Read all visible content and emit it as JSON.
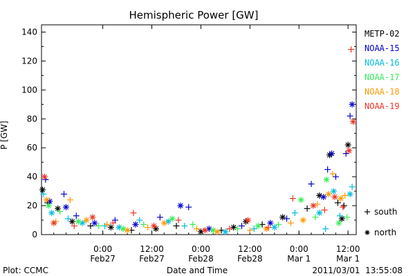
{
  "chart_data": {
    "type": "scatter",
    "title": "Hemispheric Power [GW]",
    "xlabel": "Date and Time",
    "ylabel": "P [GW]",
    "ylim": [
      0,
      145
    ],
    "yticks": [
      0,
      20,
      40,
      60,
      80,
      100,
      120,
      140
    ],
    "xlim": [
      "2011-02-26 09:00",
      "2011-03-01 14:00"
    ],
    "xticks": [
      {
        "time": "2011-02-27 00:00",
        "line1": "0:00",
        "line2": "Feb27"
      },
      {
        "time": "2011-02-27 12:00",
        "line1": "12:00",
        "line2": "Feb27"
      },
      {
        "time": "2011-02-28 00:00",
        "line1": "0:00",
        "line2": "Feb28"
      },
      {
        "time": "2011-02-28 12:00",
        "line1": "12:00",
        "line2": "Feb28"
      },
      {
        "time": "2011-03-01 00:00",
        "line1": "0:00",
        "line2": "Mar 1"
      },
      {
        "time": "2011-03-01 12:00",
        "line1": "12:00",
        "line2": "Mar 1"
      }
    ],
    "symbol_legend": [
      {
        "symbol": "+",
        "label": "south"
      },
      {
        "symbol": "*",
        "label": "north"
      }
    ],
    "series": [
      {
        "name": "METP-02",
        "color": "#000000",
        "points": [
          [
            "2011-02-26 09:15",
            31,
            "*"
          ],
          [
            "2011-02-26 10:30",
            22,
            "+"
          ],
          [
            "2011-02-26 13:00",
            18,
            "*"
          ],
          [
            "2011-02-26 16:30",
            9,
            "*"
          ],
          [
            "2011-02-26 21:00",
            6,
            "+"
          ],
          [
            "2011-02-27 02:00",
            5,
            "*"
          ],
          [
            "2011-02-27 07:00",
            3,
            "+"
          ],
          [
            "2011-02-27 13:00",
            4,
            "*"
          ],
          [
            "2011-02-27 18:00",
            6,
            "+"
          ],
          [
            "2011-02-28 00:00",
            2,
            "*"
          ],
          [
            "2011-02-28 05:00",
            3,
            "+"
          ],
          [
            "2011-02-28 08:00",
            5,
            "*"
          ],
          [
            "2011-02-28 11:00",
            9,
            "*"
          ],
          [
            "2011-02-28 15:00",
            7,
            "+"
          ],
          [
            "2011-02-28 20:00",
            12,
            "*"
          ],
          [
            "2011-03-01 02:00",
            18,
            "+"
          ],
          [
            "2011-03-01 05:00",
            27,
            "*"
          ],
          [
            "2011-03-01 07:30",
            55,
            "*"
          ],
          [
            "2011-03-01 09:30",
            22,
            "+"
          ],
          [
            "2011-03-01 10:30",
            11,
            "*"
          ],
          [
            "2011-03-01 11:00",
            20,
            "+"
          ],
          [
            "2011-03-01 12:00",
            62,
            "*"
          ]
        ]
      },
      {
        "name": "NOAA-15",
        "color": "#0000cc",
        "points": [
          [
            "2011-02-26 10:00",
            38,
            "+"
          ],
          [
            "2011-02-26 11:00",
            23,
            "*"
          ],
          [
            "2011-02-26 14:30",
            28,
            "+"
          ],
          [
            "2011-02-26 15:00",
            19,
            "*"
          ],
          [
            "2011-02-26 17:30",
            13,
            "+"
          ],
          [
            "2011-02-26 22:00",
            8,
            "*"
          ],
          [
            "2011-02-27 03:00",
            10,
            "+"
          ],
          [
            "2011-02-27 08:00",
            7,
            "*"
          ],
          [
            "2011-02-27 14:00",
            12,
            "+"
          ],
          [
            "2011-02-27 19:00",
            20,
            "*"
          ],
          [
            "2011-02-27 21:00",
            19,
            "+"
          ],
          [
            "2011-02-28 02:00",
            4,
            "*"
          ],
          [
            "2011-02-28 10:00",
            6,
            "+"
          ],
          [
            "2011-02-28 17:00",
            8,
            "*"
          ],
          [
            "2011-02-28 21:00",
            11,
            "+"
          ],
          [
            "2011-03-01 03:00",
            35,
            "+"
          ],
          [
            "2011-03-01 06:00",
            26,
            "*"
          ],
          [
            "2011-03-01 07:00",
            45,
            "+"
          ],
          [
            "2011-03-01 08:00",
            56,
            "*"
          ],
          [
            "2011-03-01 09:00",
            40,
            "+"
          ],
          [
            "2011-03-01 11:30",
            56,
            "+"
          ],
          [
            "2011-03-01 12:30",
            82,
            "+"
          ],
          [
            "2011-03-01 13:00",
            90,
            "*"
          ]
        ]
      },
      {
        "name": "NOAA-16",
        "color": "#00bbdd",
        "points": [
          [
            "2011-02-26 09:30",
            28,
            "+"
          ],
          [
            "2011-02-26 11:30",
            15,
            "*"
          ],
          [
            "2011-02-26 15:30",
            11,
            "+"
          ],
          [
            "2011-02-26 19:00",
            8,
            "*"
          ],
          [
            "2011-02-27 00:30",
            6,
            "+"
          ],
          [
            "2011-02-27 04:00",
            5,
            "*"
          ],
          [
            "2011-02-27 09:00",
            10,
            "+"
          ],
          [
            "2011-02-27 16:00",
            9,
            "*"
          ],
          [
            "2011-02-27 20:00",
            6,
            "+"
          ],
          [
            "2011-02-28 06:00",
            2,
            "*"
          ],
          [
            "2011-02-28 13:00",
            4,
            "+"
          ],
          [
            "2011-02-28 18:00",
            5,
            "*"
          ],
          [
            "2011-02-28 23:00",
            15,
            "+"
          ],
          [
            "2011-03-01 05:00",
            15,
            "*"
          ],
          [
            "2011-03-01 06:30",
            4,
            "+"
          ],
          [
            "2011-03-01 08:30",
            30,
            "*"
          ],
          [
            "2011-03-01 10:00",
            13,
            "+"
          ],
          [
            "2011-03-01 12:30",
            28,
            "*"
          ],
          [
            "2011-03-01 13:00",
            33,
            "+"
          ]
        ]
      },
      {
        "name": "NOAA-17",
        "color": "#33ee55",
        "points": [
          [
            "2011-02-26 10:45",
            20,
            "*"
          ],
          [
            "2011-02-26 13:30",
            16,
            "+"
          ],
          [
            "2011-02-26 18:00",
            9,
            "*"
          ],
          [
            "2011-02-26 23:00",
            6,
            "+"
          ],
          [
            "2011-02-27 05:00",
            4,
            "*"
          ],
          [
            "2011-02-27 10:00",
            7,
            "+"
          ],
          [
            "2011-02-27 17:00",
            11,
            "*"
          ],
          [
            "2011-02-27 22:00",
            7,
            "+"
          ],
          [
            "2011-02-28 03:00",
            3,
            "*"
          ],
          [
            "2011-02-28 09:00",
            4,
            "+"
          ],
          [
            "2011-02-28 14:00",
            6,
            "*"
          ],
          [
            "2011-02-28 19:00",
            7,
            "+"
          ],
          [
            "2011-03-01 00:30",
            24,
            "*"
          ],
          [
            "2011-03-01 04:00",
            12,
            "+"
          ],
          [
            "2011-03-01 06:45",
            38,
            "*"
          ],
          [
            "2011-03-01 09:45",
            8,
            "*"
          ],
          [
            "2011-03-01 11:45",
            12,
            "+"
          ]
        ]
      },
      {
        "name": "NOAA-18",
        "color": "#ff9900",
        "points": [
          [
            "2011-02-26 10:15",
            24,
            "*"
          ],
          [
            "2011-02-26 12:30",
            9,
            "+"
          ],
          [
            "2011-02-26 16:00",
            24,
            "+"
          ],
          [
            "2011-02-26 20:00",
            10,
            "*"
          ],
          [
            "2011-02-27 01:00",
            7,
            "+"
          ],
          [
            "2011-02-27 06:00",
            3,
            "*"
          ],
          [
            "2011-02-27 11:00",
            5,
            "+"
          ],
          [
            "2011-02-27 15:00",
            8,
            "*"
          ],
          [
            "2011-02-27 23:00",
            4,
            "+"
          ],
          [
            "2011-02-28 04:00",
            2,
            "*"
          ],
          [
            "2011-02-28 12:00",
            3,
            "+"
          ],
          [
            "2011-02-28 16:00",
            4,
            "*"
          ],
          [
            "2011-02-28 22:00",
            8,
            "+"
          ],
          [
            "2011-03-01 01:00",
            10,
            "*"
          ],
          [
            "2011-03-01 04:30",
            21,
            "+"
          ],
          [
            "2011-03-01 07:15",
            28,
            "*"
          ],
          [
            "2011-03-01 08:15",
            42,
            "+"
          ],
          [
            "2011-03-01 10:15",
            25,
            "*"
          ],
          [
            "2011-03-01 11:15",
            27,
            "+"
          ]
        ]
      },
      {
        "name": "NOAA-19",
        "color": "#ee3322",
        "points": [
          [
            "2011-02-26 09:45",
            40,
            "*"
          ],
          [
            "2011-02-26 12:00",
            8,
            "*"
          ],
          [
            "2011-02-26 17:00",
            6,
            "+"
          ],
          [
            "2011-02-26 21:30",
            12,
            "*"
          ],
          [
            "2011-02-27 02:30",
            8,
            "+"
          ],
          [
            "2011-02-27 07:30",
            15,
            "+"
          ],
          [
            "2011-02-27 12:30",
            6,
            "*"
          ],
          [
            "2011-02-27 18:30",
            10,
            "+"
          ],
          [
            "2011-02-28 01:00",
            3,
            "*"
          ],
          [
            "2011-02-28 07:00",
            4,
            "+"
          ],
          [
            "2011-02-28 11:30",
            10,
            "*"
          ],
          [
            "2011-02-28 16:30",
            5,
            "+"
          ],
          [
            "2011-02-28 22:30",
            25,
            "+"
          ],
          [
            "2011-03-01 03:30",
            20,
            "*"
          ],
          [
            "2011-03-01 06:15",
            17,
            "+"
          ],
          [
            "2011-03-01 08:45",
            26,
            "*"
          ],
          [
            "2011-03-01 10:45",
            19,
            "+"
          ],
          [
            "2011-03-01 12:15",
            58,
            "*"
          ],
          [
            "2011-03-01 12:45",
            128,
            "+"
          ],
          [
            "2011-03-01 13:15",
            78,
            "*"
          ]
        ]
      }
    ]
  },
  "footer": {
    "left": "Plot: CCMC",
    "right": "2011/03/01  13:55:08"
  }
}
